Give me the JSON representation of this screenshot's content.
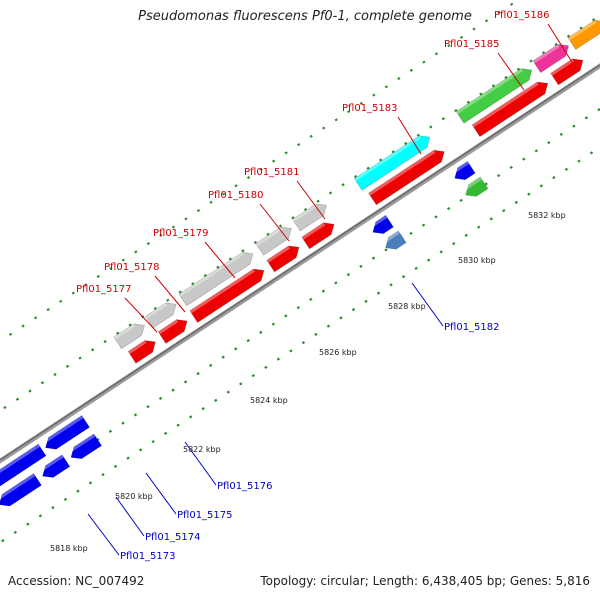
{
  "title": "Pseudomonas fluorescens Pf0-1, complete genome",
  "footer": {
    "accession": "Accession: NC_007492",
    "info": "Topology: circular; Length: 6,438,405 bp; Genes: 5,816"
  },
  "colors": {
    "forward_label": "#cc0000",
    "reverse_label": "#0000cc",
    "backbone": "#808080",
    "dots": "#2e8b2e"
  },
  "forward_genes": [
    "Pfl01_5177",
    "Pfl01_5178",
    "Pfl01_5179",
    "Pfl01_5180",
    "Pfl01_5181",
    "Pfl01_5183",
    "Pfl01_5185",
    "Pfl01_5186"
  ],
  "reverse_genes": [
    "Pfl01_5182",
    "Pfl01_5176",
    "Pfl01_5175",
    "Pfl01_5174",
    "Pfl01_5173"
  ],
  "ticks": [
    "5818 kbp",
    "5820 kbp",
    "5822 kbp",
    "5824 kbp",
    "5826 kbp",
    "5828 kbp",
    "5830 kbp",
    "5832 kbp"
  ]
}
